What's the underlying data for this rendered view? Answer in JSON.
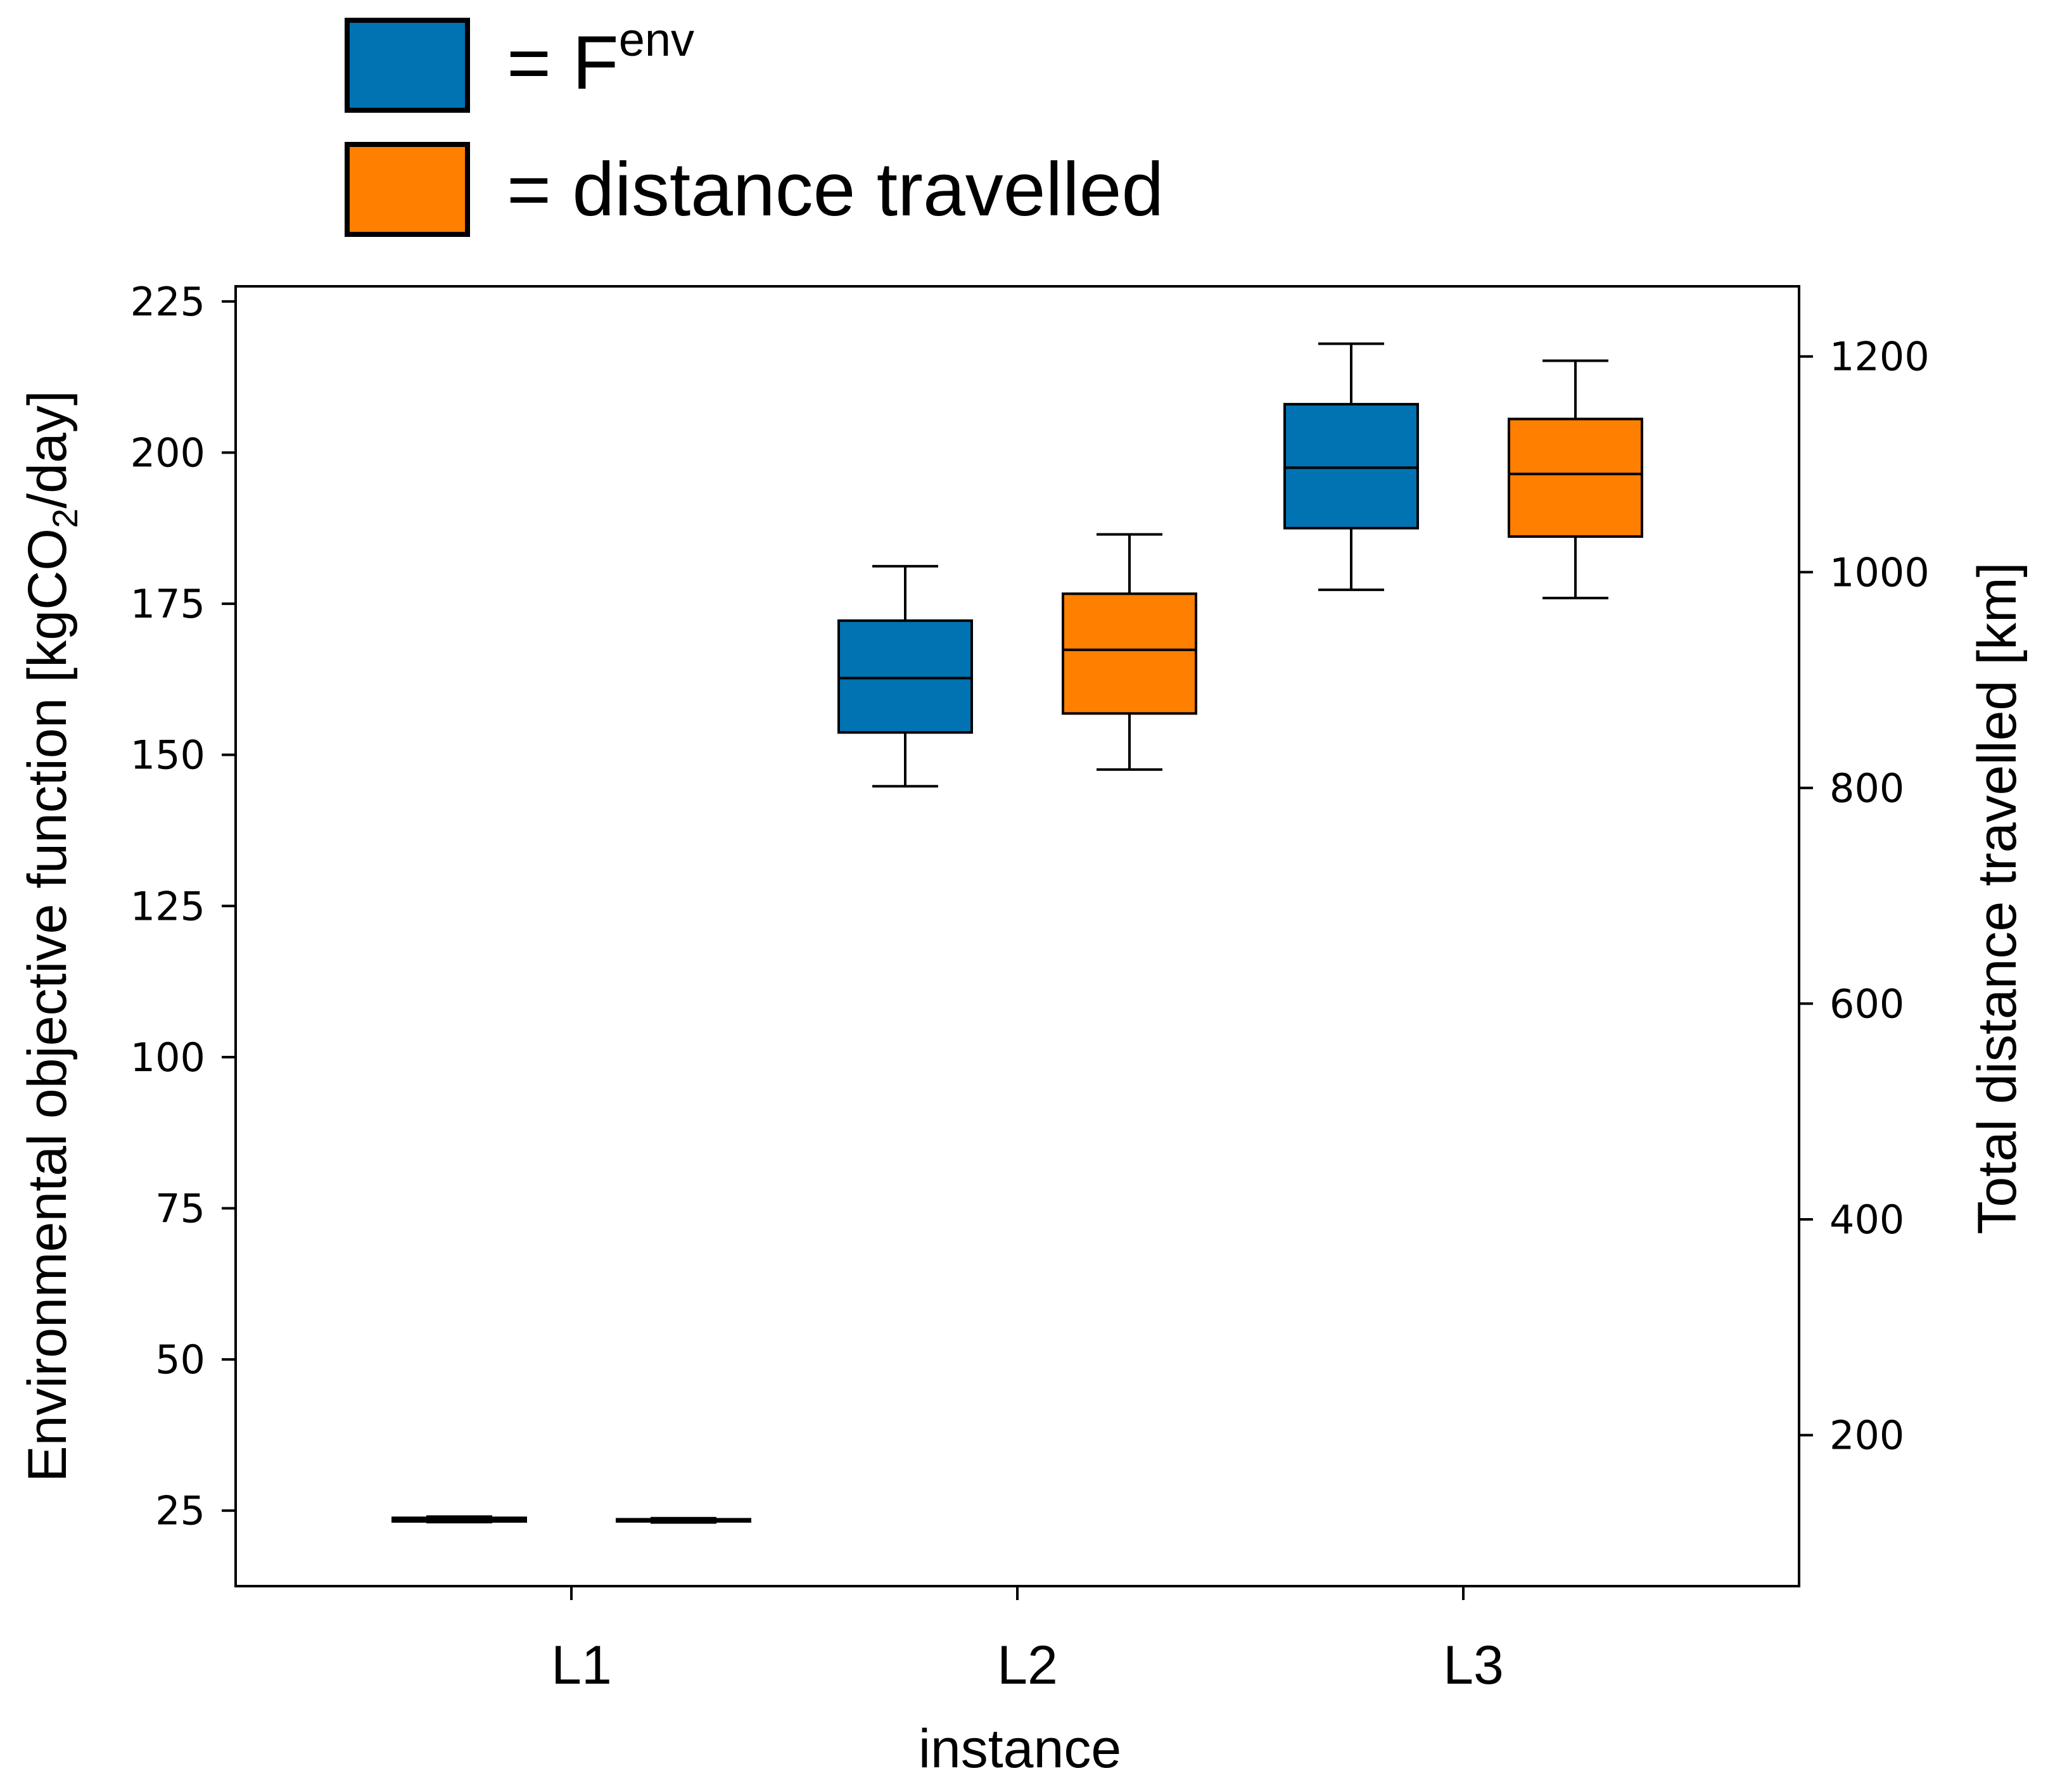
{
  "chart_data": {
    "type": "boxplot",
    "xlabel": "instance",
    "ylabel_left": {
      "prefix": "Environmental objective function [kgCO",
      "subscript": "2",
      "suffix": "/day]"
    },
    "ylabel_right": "Total distance travelled [km]",
    "ylim_left": [
      12.5,
      227.5
    ],
    "ylim_right": [
      60,
      1265
    ],
    "yticks_left": [
      25,
      50,
      75,
      100,
      125,
      150,
      175,
      200,
      225
    ],
    "yticks_right": [
      200,
      400,
      600,
      800,
      1000,
      1200
    ],
    "ytick_labels_left": [
      "25",
      "50",
      "75",
      "100",
      "125",
      "150",
      "175",
      "200",
      "225"
    ],
    "ytick_labels_right": [
      "200",
      "400",
      "600",
      "800",
      "1000",
      "1200"
    ],
    "categories": [
      "L1",
      "L2",
      "L3"
    ],
    "legend": {
      "position": "top-left",
      "entries": [
        {
          "label": "= F",
          "superscript": "env",
          "color": "#0173b2"
        },
        {
          "label": "= distance travelled",
          "color": "#ff7f00"
        }
      ]
    },
    "series": [
      {
        "name": "F env",
        "axis": "left",
        "color": "#0173b2",
        "boxes": [
          {
            "category": "L1",
            "whislo": 23.1,
            "q1": 23.2,
            "med": 23.5,
            "q3": 23.8,
            "whishi": 24.0
          },
          {
            "category": "L2",
            "whislo": 144.8,
            "q1": 153.7,
            "med": 162.7,
            "q3": 172.2,
            "whishi": 181.2
          },
          {
            "category": "L3",
            "whislo": 177.3,
            "q1": 187.5,
            "med": 197.5,
            "q3": 208.0,
            "whishi": 218.0
          }
        ]
      },
      {
        "name": "distance travelled",
        "axis": "right",
        "color": "#ff7f00",
        "boxes": [
          {
            "category": "L1",
            "whislo": 119,
            "q1": 120,
            "med": 121,
            "q3": 122,
            "whishi": 123
          },
          {
            "category": "L2",
            "whislo": 817,
            "q1": 869,
            "med": 928,
            "q3": 980,
            "whishi": 1035
          },
          {
            "category": "L3",
            "whislo": 976,
            "q1": 1033,
            "med": 1091,
            "q3": 1142,
            "whishi": 1196
          }
        ]
      }
    ]
  }
}
